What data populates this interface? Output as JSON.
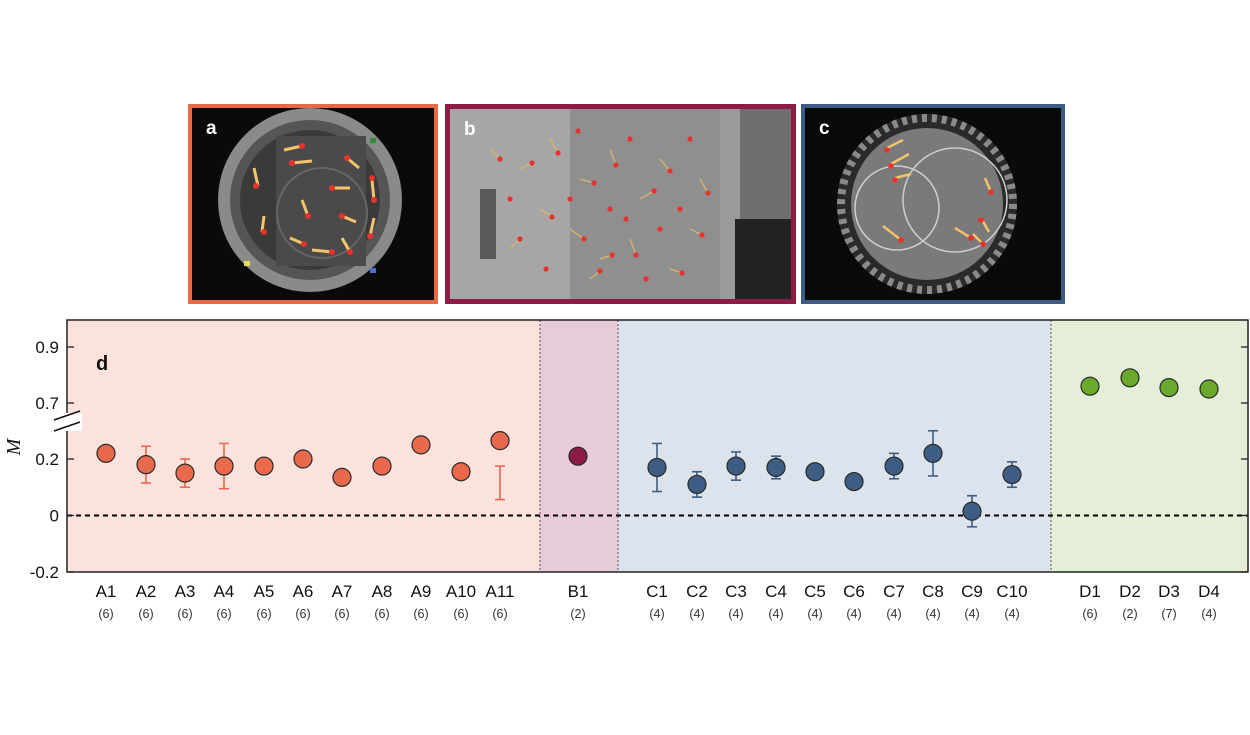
{
  "panels": [
    {
      "label": "a",
      "frame_color": "#e66a4a"
    },
    {
      "label": "b",
      "frame_color": "#8c1b45"
    },
    {
      "label": "c",
      "frame_color": "#3d5d84"
    }
  ],
  "chart_data": {
    "type": "scatter",
    "panel_label": "d",
    "ylabel": "M",
    "ytick_labels": [
      "0.9",
      "0.7",
      "0.2",
      "0",
      "-0.2"
    ],
    "axis_break": "between 0.2 and 0.7",
    "reference_line": {
      "y": 0,
      "style": "dashed"
    },
    "grid": false,
    "groups": [
      {
        "name": "A",
        "color": "#e8694b",
        "background": "#fbe2dc",
        "categories": [
          "A1",
          "A2",
          "A3",
          "A4",
          "A5",
          "A6",
          "A7",
          "A8",
          "A9",
          "A10",
          "A11"
        ],
        "n": [
          "(6)",
          "(6)",
          "(6)",
          "(6)",
          "(6)",
          "(6)",
          "(6)",
          "(6)",
          "(6)",
          "(6)",
          "(6)"
        ],
        "values": [
          0.22,
          0.18,
          0.15,
          0.175,
          0.175,
          0.2,
          0.135,
          0.175,
          0.25,
          0.155,
          0.265
        ],
        "errors": [
          0.0,
          0.065,
          0.05,
          0.08,
          0.0,
          0.02,
          0.0,
          0.0,
          0.0,
          0.0,
          0.09
        ]
      },
      {
        "name": "B",
        "color": "#8c1b45",
        "background": "#e8cbd8",
        "categories": [
          "B1"
        ],
        "n": [
          "(2)"
        ],
        "values": [
          0.21
        ],
        "errors": [
          0.0
        ]
      },
      {
        "name": "C",
        "color": "#3d5d84",
        "background": "#dde3ec",
        "categories": [
          "C1",
          "C2",
          "C3",
          "C4",
          "C5",
          "C6",
          "C7",
          "C8",
          "C9",
          "C10"
        ],
        "n": [
          "(4)",
          "(4)",
          "(4)",
          "(4)",
          "(4)",
          "(4)",
          "(4)",
          "(4)",
          "(4)",
          "(4)"
        ],
        "values": [
          0.17,
          0.11,
          0.175,
          0.17,
          0.155,
          0.12,
          0.175,
          0.22,
          0.015,
          0.145
        ],
        "errors": [
          0.085,
          0.045,
          0.05,
          0.04,
          0.0,
          0.0,
          0.045,
          0.08,
          0.055,
          0.045
        ]
      },
      {
        "name": "D",
        "color": "#6aa92b",
        "background": "#e5eed6",
        "categories": [
          "D1",
          "D2",
          "D3",
          "D4"
        ],
        "n": [
          "(6)",
          "(2)",
          "(7)",
          "(4)"
        ],
        "values": [
          0.76,
          0.79,
          0.755,
          0.75
        ],
        "errors": [
          0.0,
          0.0,
          0.0,
          0.0
        ]
      }
    ]
  }
}
